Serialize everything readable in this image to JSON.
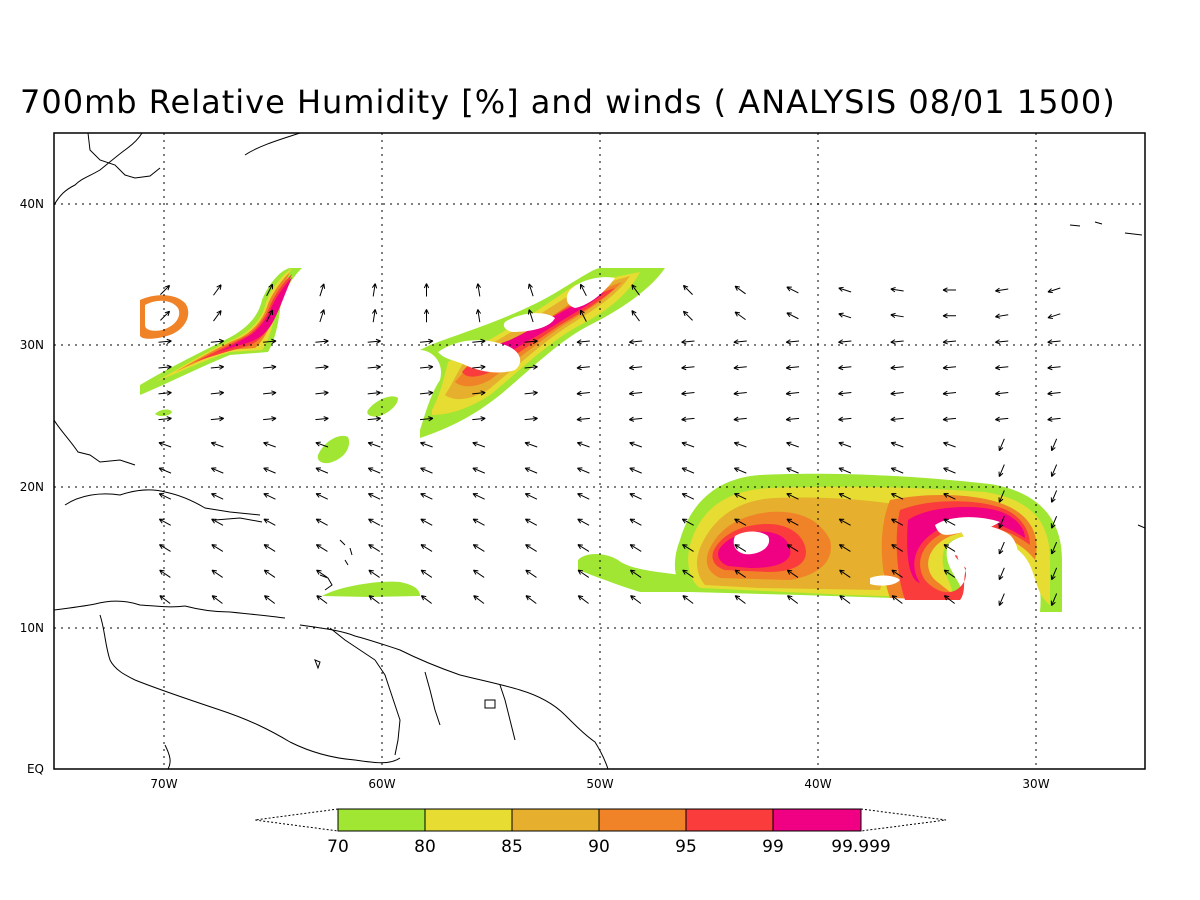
{
  "title": "700mb Relative Humidity [%] and winds ( ANALYSIS 08/01 1500)",
  "lon_labels": [
    "70W",
    "60W",
    "50W",
    "40W",
    "30W"
  ],
  "lat_labels": [
    "EQ",
    "10N",
    "20N",
    "30N",
    "40N"
  ],
  "colorbar": {
    "levels": [
      "70",
      "80",
      "85",
      "90",
      "95",
      "99",
      "99.999"
    ],
    "colors": [
      "#a0e632",
      "#e6dc32",
      "#e6af2d",
      "#f08228",
      "#fa3c3c",
      "#f00082"
    ]
  },
  "chart_data": {
    "type": "heatmap",
    "field": "relative_humidity_700mb",
    "units": "%",
    "valid": "ANALYSIS 08/01 1500",
    "lon_range": [
      -75,
      -25
    ],
    "lat_range": [
      0,
      44
    ],
    "contour_levels": [
      70,
      80,
      85,
      90,
      95,
      99,
      99.999
    ],
    "moist_regions": [
      {
        "center": [
          -42,
          16
        ],
        "max_level": "99.999"
      },
      {
        "center": [
          -34,
          15
        ],
        "max_level": "99.999"
      },
      {
        "center": [
          -55,
          28
        ],
        "max_level": "99.999"
      },
      {
        "center": [
          -51,
          33
        ],
        "max_level": "99.999"
      },
      {
        "center": [
          -67,
          31
        ],
        "max_level": "99.999"
      },
      {
        "center": [
          -58,
          13
        ],
        "max_level": "80"
      }
    ],
    "grid": true
  }
}
